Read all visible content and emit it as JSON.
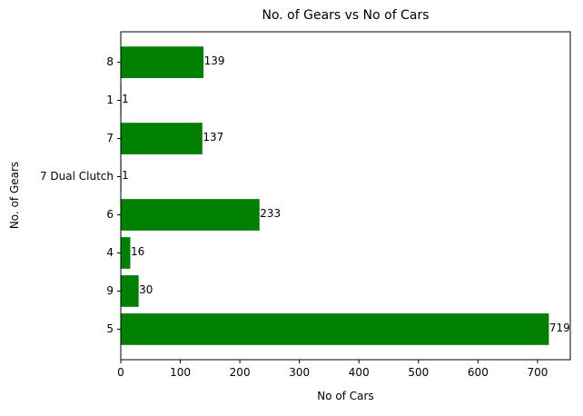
{
  "chart_data": {
    "type": "bar",
    "orientation": "horizontal",
    "title": "No. of Gears vs No of Cars",
    "xlabel": "No of Cars",
    "ylabel": "No. of Gears",
    "categories": [
      "5",
      "9",
      "4",
      "6",
      "7 Dual Clutch",
      "7",
      "1",
      "8"
    ],
    "values": [
      719,
      30,
      16,
      233,
      1,
      137,
      1,
      139
    ],
    "xlim": [
      0,
      755
    ],
    "xticks": [
      0,
      100,
      200,
      300,
      400,
      500,
      600,
      700
    ],
    "bar_color": "#008000",
    "grid": false,
    "legend": false
  }
}
